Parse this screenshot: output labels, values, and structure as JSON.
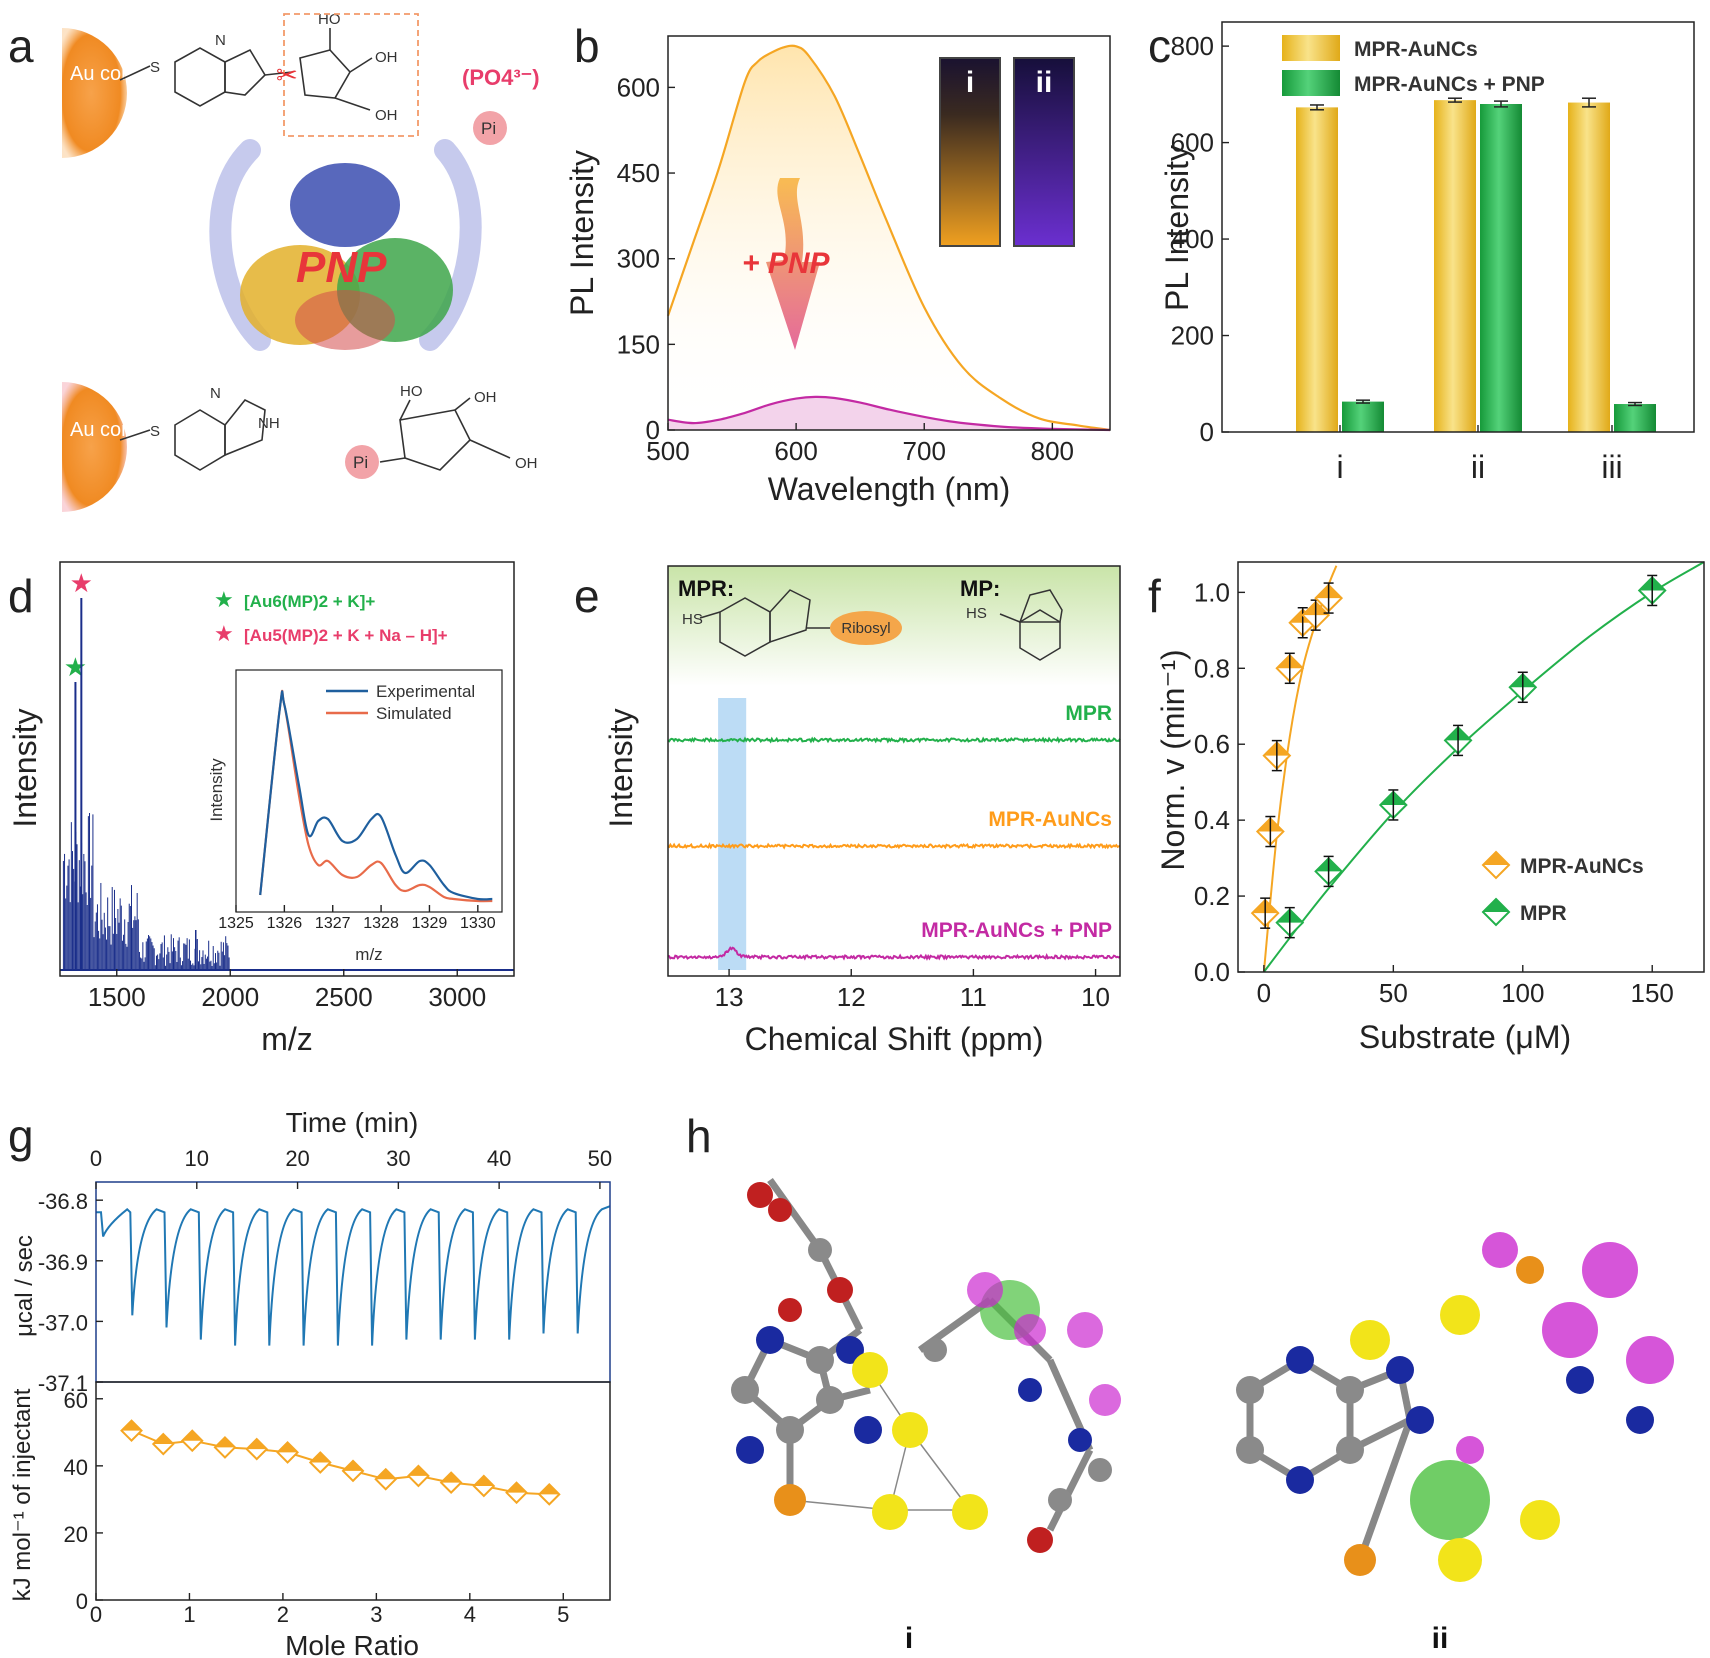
{
  "panel_labels": {
    "a": "a",
    "b": "b",
    "c": "c",
    "d": "d",
    "e": "e",
    "f": "f",
    "g": "g",
    "h": "h"
  },
  "panel_a": {
    "au_core_top": "Au core",
    "au_core_bottom": "Au core",
    "phosphate": "(PO4³⁻)",
    "pi_top": "Pi",
    "pi_bottom": "Pi",
    "enzyme": "PNP",
    "atoms": {
      "S": "S",
      "N": "N",
      "NH": "NH",
      "OH": "OH",
      "HO": "HO",
      "O": "O"
    }
  },
  "colors": {
    "orange": "#f5a623",
    "gold": "#f2c12e",
    "green": "#22b04b",
    "magenta": "#c32aa3",
    "navy": "#1a2e8a",
    "steel": "#2c7fb8",
    "red": "#e8353a",
    "lightblue": "#bcdcf5",
    "nmr_orange": "#ff9c1a"
  },
  "chart_data": [
    {
      "id": "b",
      "type": "line",
      "xlabel": "Wavelength (nm)",
      "ylabel": "PL Intensity",
      "xlim": [
        500,
        845
      ],
      "ylim": [
        0,
        690
      ],
      "xticks": [
        500,
        600,
        700,
        800
      ],
      "yticks": [
        0,
        150,
        300,
        450,
        600
      ],
      "annotation": "+ PNP",
      "inset_labels": [
        "i",
        "ii"
      ],
      "series": [
        {
          "x": [
            500,
            520,
            540,
            560,
            570,
            580,
            590,
            600,
            610,
            630,
            650,
            670,
            700,
            730,
            760,
            790,
            820,
            845
          ],
          "y": [
            200,
            330,
            460,
            610,
            645,
            660,
            670,
            672,
            655,
            585,
            480,
            370,
            215,
            110,
            55,
            20,
            8,
            0
          ],
          "color": "#f5a623"
        },
        {
          "x": [
            500,
            520,
            540,
            560,
            580,
            600,
            615,
            630,
            650,
            680,
            720,
            760,
            800,
            845
          ],
          "y": [
            18,
            12,
            18,
            30,
            45,
            55,
            58,
            56,
            48,
            32,
            15,
            6,
            2,
            0
          ],
          "color": "#c32aa3"
        }
      ]
    },
    {
      "id": "c",
      "type": "bar",
      "ylabel": "PL Intensity",
      "categories": [
        "i",
        "ii",
        "iii"
      ],
      "ylim": [
        0,
        850
      ],
      "yticks": [
        0,
        200,
        400,
        600,
        800
      ],
      "series": [
        {
          "name": "MPR-AuNCs",
          "values": [
            673,
            688,
            683
          ],
          "errors": [
            5,
            4,
            9
          ],
          "color": "#f2c12e"
        },
        {
          "name": "MPR-AuNCs + PNP",
          "values": [
            63,
            680,
            58
          ],
          "errors": [
            3,
            6,
            3
          ],
          "color": "#22b04b"
        }
      ]
    },
    {
      "id": "d",
      "type": "bar",
      "xlabel": "m/z",
      "ylabel": "Intensity",
      "xlim": [
        1250,
        3250
      ],
      "xticks": [
        1500,
        2000,
        2500,
        3000
      ],
      "legend": [
        {
          "name": "[Au6(MP)2 + K]+",
          "color": "#22b04b"
        },
        {
          "name": "[Au5(MP)2 + K + Na – H]+",
          "color": "#e83d6b"
        }
      ],
      "star_peaks": [
        {
          "x": 1318,
          "y": 0.72,
          "color": "#22b04b"
        },
        {
          "x": 1344,
          "y": 0.93,
          "color": "#e83d6b"
        }
      ],
      "inset": {
        "type": "line",
        "xlabel": "m/z",
        "ylabel": "Intensity",
        "xlim": [
          1325,
          1330.5
        ],
        "xticks": [
          1325,
          1326,
          1327,
          1328,
          1329,
          1330
        ],
        "series": [
          {
            "name": "Experimental",
            "color": "#1f5f9e",
            "x": [
              1325.5,
              1325.9,
              1326.0,
              1326.3,
              1326.5,
              1326.7,
              1326.9,
              1327.2,
              1327.5,
              1327.8,
              1328.0,
              1328.3,
              1328.5,
              1328.8,
              1329.0,
              1329.3,
              1329.5,
              1330.0,
              1330.3
            ],
            "y": [
              0.05,
              0.97,
              1.0,
              0.6,
              0.35,
              0.42,
              0.43,
              0.32,
              0.33,
              0.43,
              0.44,
              0.25,
              0.16,
              0.22,
              0.2,
              0.1,
              0.06,
              0.03,
              0.03
            ]
          },
          {
            "name": "Simulated",
            "color": "#e86b4a",
            "x": [
              1325.5,
              1325.9,
              1326.0,
              1326.3,
              1326.5,
              1326.7,
              1326.9,
              1327.2,
              1327.5,
              1327.8,
              1328.0,
              1328.3,
              1328.5,
              1328.8,
              1329.0,
              1329.3,
              1329.5,
              1330.0,
              1330.3
            ],
            "y": [
              0.05,
              0.97,
              1.0,
              0.55,
              0.3,
              0.2,
              0.22,
              0.15,
              0.14,
              0.2,
              0.21,
              0.1,
              0.07,
              0.1,
              0.09,
              0.04,
              0.03,
              0.02,
              0.02
            ]
          }
        ]
      }
    },
    {
      "id": "e",
      "type": "line",
      "xlabel": "Chemical Shift (ppm)",
      "ylabel": "Intensity",
      "xlim": [
        13.5,
        9.8
      ],
      "xticks": [
        13,
        12,
        11,
        10
      ],
      "highlight": [
        12.86,
        13.09
      ],
      "structures": {
        "mpr": "MPR:",
        "mp": "MP:",
        "ribosyl": "Ribosyl",
        "hs": "HS"
      },
      "series": [
        {
          "name": "MPR",
          "color": "#22b04b"
        },
        {
          "name": "MPR-AuNCs",
          "color": "#ff9c1a"
        },
        {
          "name": "MPR-AuNCs + PNP",
          "color": "#c32aa3"
        }
      ]
    },
    {
      "id": "f",
      "type": "scatter",
      "xlabel": "Substrate (μM)",
      "ylabel": "Norm. v (min⁻¹)",
      "xlim": [
        -10,
        170
      ],
      "ylim": [
        0,
        1.08
      ],
      "xticks": [
        0,
        50,
        100,
        150
      ],
      "yticks": [
        0.0,
        0.2,
        0.4,
        0.6,
        0.8,
        1.0
      ],
      "series": [
        {
          "name": "MPR-AuNCs",
          "color": "#f5a623",
          "x": [
            0.5,
            2.5,
            5,
            10,
            15,
            20,
            25
          ],
          "y": [
            0.155,
            0.37,
            0.57,
            0.8,
            0.92,
            0.94,
            0.985
          ],
          "fit": {
            "x": [
              0,
              5,
              10,
              15,
              20,
              25,
              28
            ],
            "y": [
              0,
              0.36,
              0.62,
              0.8,
              0.92,
              1.02,
              1.07
            ]
          }
        },
        {
          "name": "MPR",
          "color": "#22b04b",
          "x": [
            10,
            25,
            50,
            75,
            100,
            150
          ],
          "y": [
            0.13,
            0.265,
            0.44,
            0.61,
            0.75,
            1.005
          ],
          "fit": {
            "x": [
              0,
              10,
              25,
              50,
              75,
              100,
              125,
              150,
              170
            ],
            "y": [
              0,
              0.09,
              0.22,
              0.42,
              0.59,
              0.74,
              0.88,
              1.0,
              1.08
            ]
          }
        }
      ]
    },
    {
      "id": "g-top",
      "type": "line",
      "xlabel": "Time (min)",
      "ylabel": "μcal / sec",
      "xlim": [
        0,
        51
      ],
      "ylim": [
        -37.1,
        -36.77
      ],
      "xticks": [
        0,
        10,
        20,
        30,
        40,
        50
      ],
      "yticks": [
        -36.8,
        -36.9,
        -37.0,
        -37.1
      ],
      "injection_times": [
        0.5,
        3.4,
        6.8,
        10.2,
        13.6,
        17.0,
        20.4,
        23.8,
        27.2,
        30.6,
        34.0,
        37.4,
        40.8,
        44.2,
        47.6
      ],
      "injection_minima": [
        -36.86,
        -36.99,
        -37.01,
        -37.03,
        -37.04,
        -37.04,
        -37.04,
        -37.04,
        -37.04,
        -37.03,
        -37.03,
        -37.03,
        -37.03,
        -37.02,
        -37.02
      ],
      "baseline": -36.82,
      "color": "#2078b4"
    },
    {
      "id": "g-bottom",
      "type": "line",
      "xlabel": "Mole Ratio",
      "ylabel": "kJ mol⁻¹ of injectant",
      "xlim": [
        0,
        5.5
      ],
      "ylim": [
        0,
        65
      ],
      "xticks": [
        0,
        1,
        2,
        3,
        4,
        5
      ],
      "yticks": [
        0,
        20,
        40,
        60
      ],
      "color": "#f5a623",
      "x": [
        0.38,
        0.72,
        1.03,
        1.38,
        1.72,
        2.05,
        2.4,
        2.75,
        3.1,
        3.45,
        3.8,
        4.15,
        4.5,
        4.85
      ],
      "y": [
        50.5,
        46.5,
        47.5,
        45.5,
        45.0,
        44.0,
        41.0,
        38.5,
        36.0,
        37.0,
        35.0,
        34.0,
        32.0,
        31.5
      ]
    }
  ],
  "panel_h": {
    "labels": [
      "i",
      "ii"
    ]
  }
}
